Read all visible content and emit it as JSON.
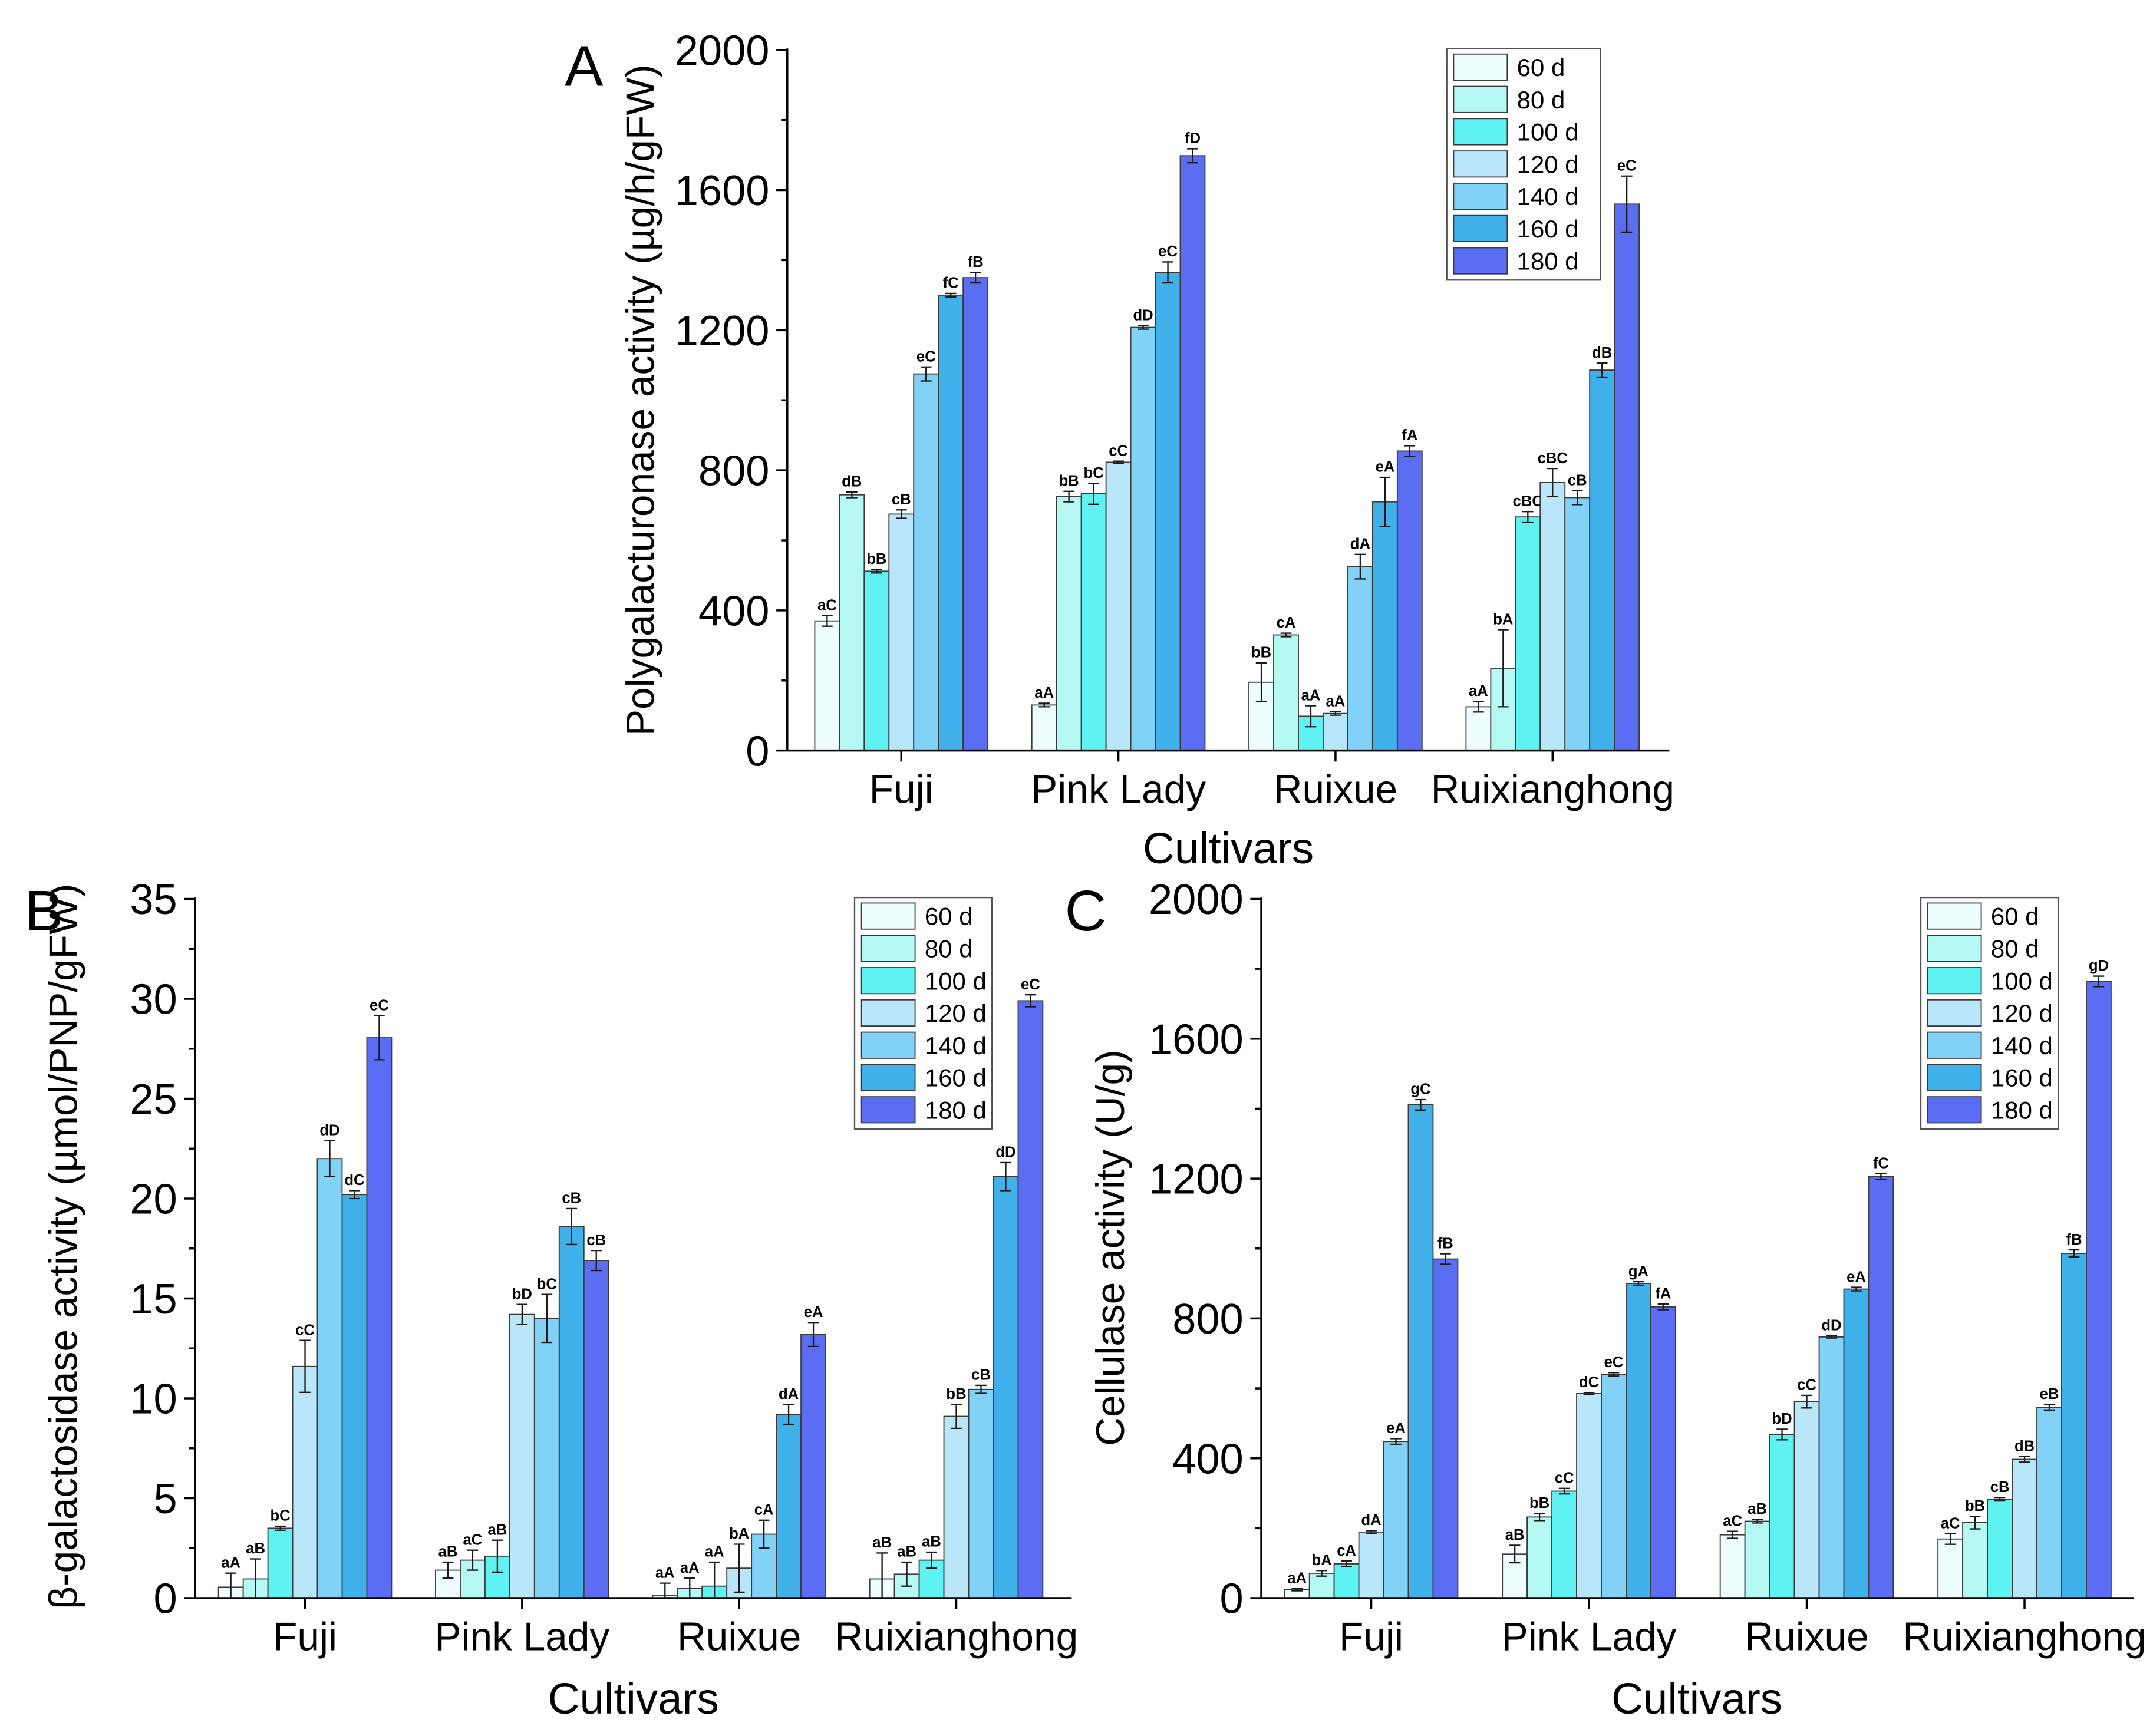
{
  "chart_data": [
    {
      "panel_label": "A",
      "type": "bar",
      "xlabel": "Cultivars",
      "ylabel": "Polygalacturonase activity (µg/h/gFW)",
      "ylim": [
        0,
        2000
      ],
      "yticks": [
        0,
        400,
        800,
        1200,
        1600,
        2000
      ],
      "grid": false,
      "legend": "top-right",
      "categories": [
        "Fuji",
        "Pink Lady",
        "Ruixue",
        "Ruixianghong"
      ],
      "series": [
        {
          "name": "60 d",
          "color": "#eefefe",
          "values": [
            370,
            130,
            195,
            125
          ],
          "errors": [
            15,
            5,
            55,
            15
          ],
          "labels": [
            "aC",
            "aA",
            "bB",
            "aA"
          ]
        },
        {
          "name": "80 d",
          "color": "#b5f8f4",
          "values": [
            730,
            725,
            330,
            235
          ],
          "errors": [
            8,
            15,
            5,
            110
          ],
          "labels": [
            "dB",
            "bB",
            "cA",
            "bA"
          ]
        },
        {
          "name": "100 d",
          "color": "#5ff2f2",
          "values": [
            512,
            733,
            98,
            667
          ],
          "errors": [
            5,
            30,
            30,
            15
          ],
          "labels": [
            "bB",
            "bC",
            "aA",
            "cBC"
          ]
        },
        {
          "name": "120 d",
          "color": "#b9e6f8",
          "values": [
            675,
            823,
            106,
            765
          ],
          "errors": [
            12,
            3,
            5,
            40
          ],
          "labels": [
            "cB",
            "cC",
            "aA",
            "cBC"
          ]
        },
        {
          "name": "140 d",
          "color": "#82d1f6",
          "values": [
            1075,
            1208,
            525,
            722
          ],
          "errors": [
            20,
            5,
            35,
            20
          ],
          "labels": [
            "eC",
            "dD",
            "dA",
            "cB"
          ]
        },
        {
          "name": "160 d",
          "color": "#3fb0ea",
          "values": [
            1300,
            1365,
            710,
            1086
          ],
          "errors": [
            5,
            30,
            70,
            20
          ],
          "labels": [
            "fC",
            "eC",
            "eA",
            "dB"
          ]
        },
        {
          "name": "180 d",
          "color": "#5b6ef3",
          "values": [
            1350,
            1698,
            855,
            1560
          ],
          "errors": [
            15,
            20,
            15,
            80
          ],
          "labels": [
            "fB",
            "fD",
            "fA",
            "eC"
          ]
        }
      ]
    },
    {
      "panel_label": "B",
      "type": "bar",
      "xlabel": "Cultivars",
      "ylabel": "β-galactosidase activity (µmol/PNP/gFW)",
      "ylim": [
        0,
        35
      ],
      "yticks": [
        0,
        5,
        10,
        15,
        20,
        25,
        30,
        35
      ],
      "grid": false,
      "legend": "top-right",
      "categories": [
        "Fuji",
        "Pink Lady",
        "Ruixue",
        "Ruixianghong"
      ],
      "series": [
        {
          "name": "60 d",
          "color": "#eefefe",
          "values": [
            0.55,
            1.4,
            0.15,
            0.96
          ],
          "errors": [
            0.7,
            0.4,
            0.6,
            1.3
          ],
          "labels": [
            "aA",
            "aB",
            "aA",
            "aB"
          ]
        },
        {
          "name": "80 d",
          "color": "#b5f8f4",
          "values": [
            0.96,
            1.9,
            0.5,
            1.2
          ],
          "errors": [
            1.0,
            0.5,
            0.5,
            0.6
          ],
          "labels": [
            "aB",
            "aC",
            "aA",
            "aB"
          ]
        },
        {
          "name": "100 d",
          "color": "#5ff2f2",
          "values": [
            3.5,
            2.1,
            0.6,
            1.9
          ],
          "errors": [
            0.1,
            0.8,
            1.2,
            0.4
          ],
          "labels": [
            "bC",
            "aB",
            "aA",
            "aB"
          ]
        },
        {
          "name": "120 d",
          "color": "#b9e6f8",
          "values": [
            11.6,
            14.2,
            1.5,
            9.1
          ],
          "errors": [
            1.3,
            0.5,
            1.2,
            0.6
          ],
          "labels": [
            "cC",
            "bD",
            "bA",
            "bB"
          ]
        },
        {
          "name": "140 d",
          "color": "#82d1f6",
          "values": [
            22.0,
            14.0,
            3.2,
            10.45
          ],
          "errors": [
            0.9,
            1.2,
            0.7,
            0.2
          ],
          "labels": [
            "dD",
            "bC",
            "cA",
            "cB"
          ]
        },
        {
          "name": "160 d",
          "color": "#3fb0ea",
          "values": [
            20.2,
            18.6,
            9.2,
            21.1
          ],
          "errors": [
            0.2,
            0.9,
            0.5,
            0.7
          ],
          "labels": [
            "dC",
            "cB",
            "dA",
            "dD"
          ]
        },
        {
          "name": "180 d",
          "color": "#5b6ef3",
          "values": [
            28.05,
            16.9,
            13.2,
            29.9
          ],
          "errors": [
            1.1,
            0.5,
            0.6,
            0.3
          ],
          "labels": [
            "eC",
            "cB",
            "eA",
            "eC"
          ]
        }
      ]
    },
    {
      "panel_label": "C",
      "type": "bar",
      "xlabel": "Cultivars",
      "ylabel": "Cellulase activity (U/g)",
      "ylim": [
        0,
        2000
      ],
      "yticks": [
        0,
        400,
        800,
        1200,
        1600,
        2000
      ],
      "grid": false,
      "legend": "top-right",
      "categories": [
        "Fuji",
        "Pink Lady",
        "Ruixue",
        "Ruixianghong"
      ],
      "series": [
        {
          "name": "60 d",
          "color": "#eefefe",
          "values": [
            24,
            126,
            181,
            169
          ],
          "errors": [
            3,
            25,
            10,
            15
          ],
          "labels": [
            "aA",
            "aB",
            "aC",
            "aC"
          ]
        },
        {
          "name": "80 d",
          "color": "#b5f8f4",
          "values": [
            71,
            232,
            220,
            216
          ],
          "errors": [
            8,
            10,
            5,
            18
          ],
          "labels": [
            "bA",
            "bB",
            "aB",
            "bB"
          ]
        },
        {
          "name": "100 d",
          "color": "#5ff2f2",
          "values": [
            98,
            306,
            468,
            283
          ],
          "errors": [
            8,
            8,
            15,
            5
          ],
          "labels": [
            "cA",
            "cC",
            "bD",
            "cB"
          ]
        },
        {
          "name": "120 d",
          "color": "#b9e6f8",
          "values": [
            189,
            585,
            562,
            397
          ],
          "errors": [
            4,
            3,
            18,
            8
          ],
          "labels": [
            "dA",
            "dC",
            "cC",
            "dB"
          ]
        },
        {
          "name": "140 d",
          "color": "#82d1f6",
          "values": [
            448,
            640,
            747,
            546
          ],
          "errors": [
            8,
            5,
            3,
            8
          ],
          "labels": [
            "eA",
            "eC",
            "dD",
            "eB"
          ]
        },
        {
          "name": "160 d",
          "color": "#3fb0ea",
          "values": [
            1411,
            900,
            884,
            986
          ],
          "errors": [
            15,
            5,
            5,
            10
          ],
          "labels": [
            "gC",
            "gA",
            "eA",
            "fB"
          ]
        },
        {
          "name": "180 d",
          "color": "#5b6ef3",
          "values": [
            970,
            833,
            1206,
            1764
          ],
          "errors": [
            15,
            8,
            8,
            15
          ],
          "labels": [
            "fB",
            "fA",
            "fC",
            "gD"
          ]
        }
      ]
    }
  ]
}
